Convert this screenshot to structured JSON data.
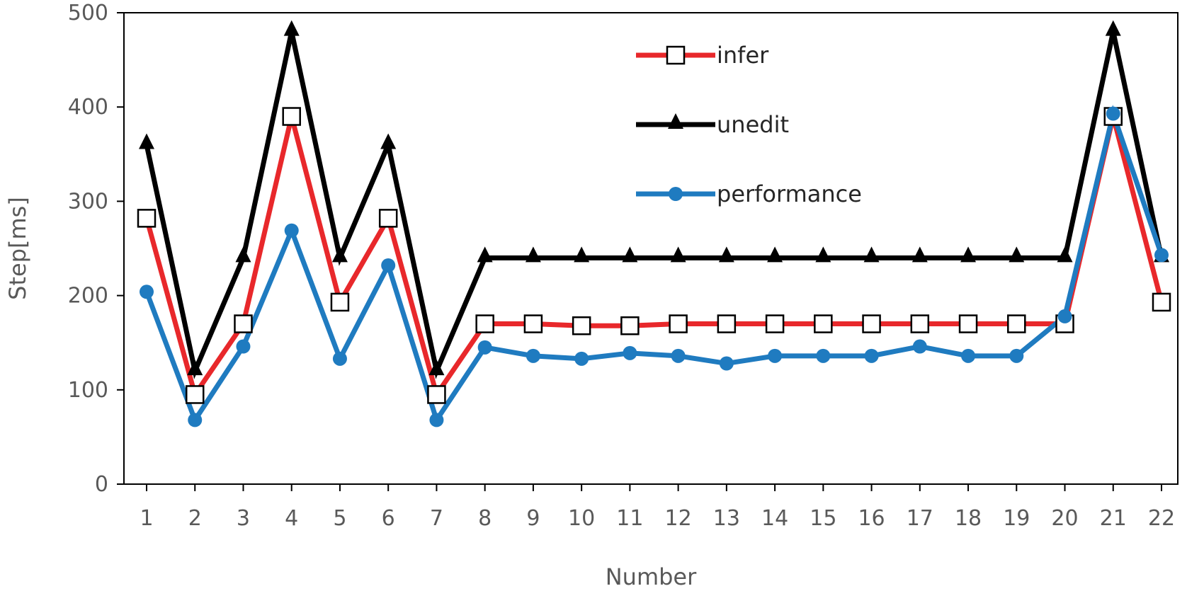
{
  "chart_data": {
    "type": "line",
    "xlabel": "Number",
    "ylabel": "Step[ms]",
    "ylim": [
      0,
      500
    ],
    "yticks": [
      0,
      100,
      200,
      300,
      400,
      500
    ],
    "categories": [
      "1",
      "2",
      "3",
      "4",
      "5",
      "6",
      "7",
      "8",
      "9",
      "10",
      "11",
      "12",
      "13",
      "14",
      "15",
      "16",
      "17",
      "18",
      "19",
      "20",
      "21",
      "22"
    ],
    "legend_position": "top-right",
    "grid": false,
    "series": [
      {
        "name": "infer",
        "color": "#e8282b",
        "marker": "square-open",
        "values": [
          282,
          95,
          170,
          390,
          193,
          282,
          95,
          170,
          170,
          168,
          168,
          170,
          170,
          170,
          170,
          170,
          170,
          170,
          170,
          170,
          390,
          193
        ]
      },
      {
        "name": "unedit",
        "color": "#000000",
        "marker": "triangle",
        "values": [
          360,
          120,
          240,
          480,
          240,
          360,
          120,
          240,
          240,
          240,
          240,
          240,
          240,
          240,
          240,
          240,
          240,
          240,
          240,
          240,
          480,
          240
        ]
      },
      {
        "name": "performance",
        "color": "#1f7bc0",
        "marker": "circle",
        "values": [
          204,
          68,
          146,
          269,
          133,
          232,
          68,
          145,
          136,
          133,
          139,
          136,
          128,
          136,
          136,
          136,
          146,
          136,
          136,
          178,
          393,
          243
        ]
      }
    ]
  }
}
